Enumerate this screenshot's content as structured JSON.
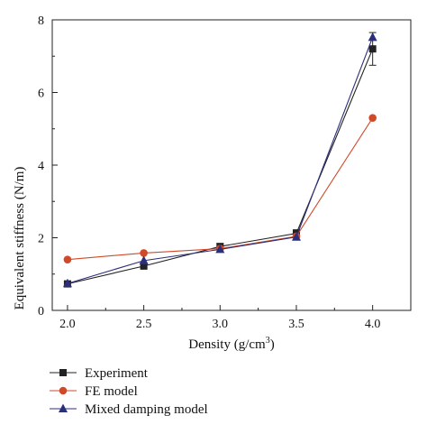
{
  "chart_data": {
    "type": "line",
    "xlabel": "Density (g/cm",
    "xlabel_sup": "3",
    "xlabel_tail": ")",
    "ylabel": "Equivalent stiffness (N/m)",
    "x": [
      2.0,
      2.5,
      3.0,
      3.5,
      4.0
    ],
    "x_tick_labels": [
      "2.0",
      "2.5",
      "3.0",
      "3.5",
      "4.0"
    ],
    "y_ticks": [
      0,
      2,
      4,
      6,
      8
    ],
    "y_tick_labels": [
      "0",
      "2",
      "4",
      "6",
      "8"
    ],
    "xlim": [
      1.9,
      4.25
    ],
    "ylim": [
      0,
      8
    ],
    "grid": false,
    "legend_position": "below",
    "series": [
      {
        "name": "Experiment",
        "color": "#222222",
        "marker": "square",
        "values": [
          0.73,
          1.22,
          1.76,
          2.12,
          7.2
        ],
        "error": [
          0.05,
          0.05,
          0.08,
          0.1,
          0.45
        ]
      },
      {
        "name": "FE model",
        "color": "#d04a2a",
        "marker": "circle",
        "values": [
          1.4,
          1.58,
          1.7,
          2.04,
          5.3
        ]
      },
      {
        "name": "Mixed damping model",
        "color": "#2b2f7a",
        "marker": "triangle",
        "values": [
          0.74,
          1.37,
          1.68,
          2.02,
          7.52
        ]
      }
    ]
  }
}
